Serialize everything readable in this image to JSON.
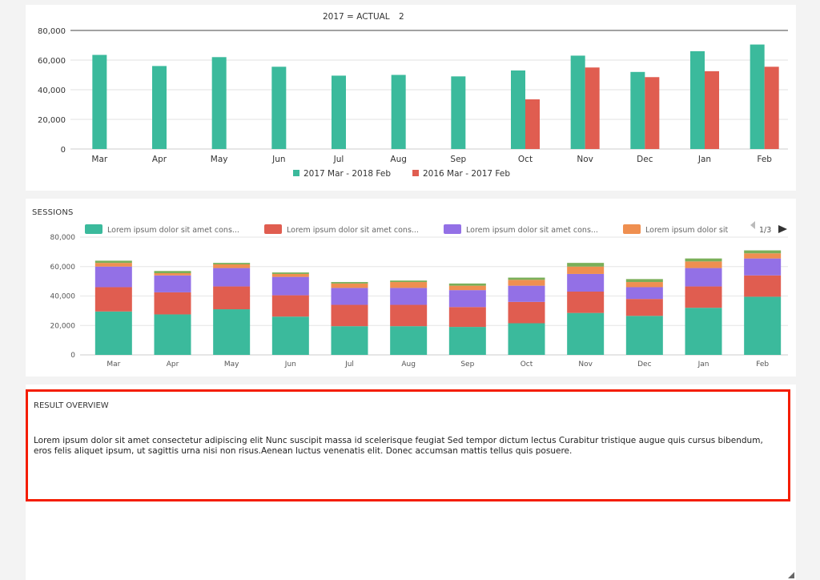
{
  "top_chart": {
    "title_left": "2017 = ACTUAL",
    "title_right": "2",
    "chart_data": {
      "type": "bar",
      "categories": [
        "Mar",
        "Apr",
        "May",
        "Jun",
        "Jul",
        "Aug",
        "Sep",
        "Oct",
        "Nov",
        "Dec",
        "Jan",
        "Feb"
      ],
      "series": [
        {
          "name": "2017 Mar - 2018 Feb",
          "color": "#3bba9c",
          "values": [
            63500,
            56000,
            62000,
            55500,
            49500,
            50000,
            49000,
            53000,
            63000,
            52000,
            66000,
            70500
          ]
        },
        {
          "name": "2016 Mar - 2017 Feb",
          "color": "#e05d50",
          "values": [
            null,
            null,
            null,
            null,
            null,
            null,
            null,
            33500,
            55000,
            48500,
            52500,
            55500
          ]
        }
      ],
      "ylim": [
        0,
        80000
      ],
      "yticks": [
        "0",
        "20,000",
        "40,000",
        "60,000",
        "80,000"
      ],
      "grid": true,
      "legend": "bottom"
    }
  },
  "mid_chart": {
    "title": "SESSIONS",
    "legend_page": "1/3",
    "chart_data": {
      "type": "bar",
      "stacked": true,
      "categories": [
        "Mar",
        "Apr",
        "May",
        "Jun",
        "Jul",
        "Aug",
        "Sep",
        "Oct",
        "Nov",
        "Dec",
        "Jan",
        "Feb"
      ],
      "series": [
        {
          "name": "Lorem ipsum dolor sit amet cons...",
          "color": "#3bba9c",
          "values": [
            29500,
            27500,
            31000,
            26000,
            19500,
            19500,
            19000,
            21500,
            28500,
            26500,
            32000,
            39500
          ]
        },
        {
          "name": "Lorem ipsum dolor sit amet cons...",
          "color": "#e05d50",
          "values": [
            16500,
            15000,
            15500,
            14500,
            14500,
            14500,
            13500,
            14500,
            14500,
            11500,
            14500,
            14500
          ]
        },
        {
          "name": "Lorem ipsum dolor sit amet cons...",
          "color": "#9370e6",
          "values": [
            14000,
            11500,
            12500,
            12500,
            11500,
            11500,
            11500,
            11000,
            12000,
            8000,
            12500,
            11500
          ]
        },
        {
          "name": "Lorem ipsum dolor sit",
          "color": "#ef8f50",
          "values": [
            2500,
            1500,
            2500,
            2000,
            3000,
            4000,
            3000,
            4000,
            5000,
            3500,
            4500,
            3500
          ]
        },
        {
          "name": "",
          "color": "#7aaf59",
          "values": [
            1500,
            1500,
            1000,
            1000,
            1000,
            1000,
            1500,
            1500,
            2500,
            2000,
            2000,
            2000
          ]
        }
      ],
      "ylim": [
        0,
        80000
      ],
      "yticks": [
        "0",
        "20,000",
        "40,000",
        "60,000",
        "80,000"
      ],
      "grid": true,
      "legend": "top"
    }
  },
  "result": {
    "title": "RESULT OVERVIEW",
    "text": "Lorem ipsum dolor sit amet consectetur adipiscing elit Nunc suscipit massa id scelerisque feugiat Sed tempor dictum lectus Curabitur tristique augue quis cursus bibendum, eros felis aliquet ipsum, ut sagittis urna nisi non risus.Aenean luctus venenatis elit. Donec accumsan mattis tellus quis posuere."
  },
  "icons": {
    "legend_prev": "triangle-left-icon",
    "legend_next": "triangle-right-icon",
    "resize": "resize-grip-icon"
  }
}
